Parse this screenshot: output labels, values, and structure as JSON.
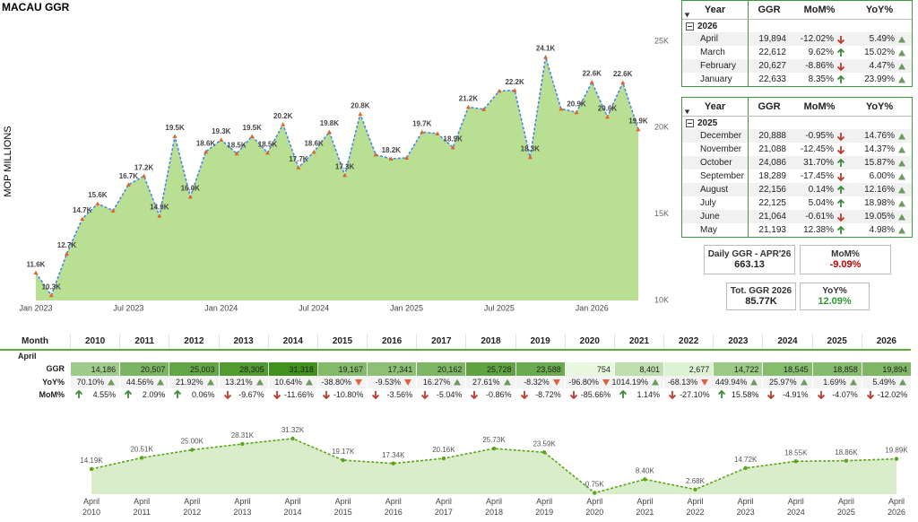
{
  "title": "MACAU GGR",
  "chart_data": [
    {
      "type": "area",
      "y_label": "MOP MILLIONS",
      "categories": [
        "Jan 2023",
        null,
        null,
        null,
        null,
        null,
        "Jul 2023",
        null,
        null,
        null,
        null,
        null,
        "Jan 2024",
        null,
        null,
        null,
        null,
        null,
        "Jul 2024",
        null,
        null,
        null,
        null,
        null,
        "Jan 2025",
        null,
        null,
        null,
        null,
        null,
        "Jul 2025",
        null,
        null,
        null,
        null,
        null,
        "Jan 2026",
        null,
        null,
        null
      ],
      "values": [
        11600,
        10300,
        12700,
        14722,
        15600,
        15200,
        16700,
        17200,
        14900,
        19500,
        16000,
        18600,
        19300,
        18500,
        19500,
        18545,
        20188,
        17694,
        18595,
        19754,
        17254,
        20787,
        18438,
        18202,
        18255,
        19744,
        19660,
        18858,
        21193,
        21064,
        22125,
        22156,
        18289,
        24086,
        21088,
        20888,
        22633,
        20627,
        22612,
        19894
      ],
      "value_labels": [
        "11.6K",
        "10.3K",
        "12.7K",
        "14.7K",
        "15.6K",
        null,
        "16.7K",
        "17.2K",
        "14.9K",
        "19.5K",
        "16.0K",
        "18.6K",
        "19.3K",
        "18.5K",
        "19.5K",
        "18.5K",
        "20.2K",
        "17.7K",
        "18.6K",
        "19.8K",
        "17.3K",
        "20.8K",
        null,
        "18.2K",
        null,
        "19.7K",
        null,
        "18.9K",
        "21.2K",
        null,
        null,
        "22.2K",
        "18.3K",
        "24.1K",
        null,
        "20.9K",
        "22.6K",
        "20.6K",
        "22.6K",
        "19.9K"
      ],
      "ylim": [
        10000,
        25000
      ],
      "yticks": [
        {
          "value": 10000,
          "label": "10K"
        },
        {
          "value": 15000,
          "label": "15K"
        },
        {
          "value": 20000,
          "label": "20K"
        },
        {
          "value": 25000,
          "label": "25K"
        }
      ],
      "line_color": "#4a86e8",
      "fill_color": "#b9df93",
      "marker_color": "#e0632a"
    },
    {
      "type": "area",
      "categories": [
        "April 2010",
        "April 2011",
        "April 2012",
        "April 2013",
        "April 2014",
        "April 2015",
        "April 2016",
        "April 2017",
        "April 2018",
        "April 2019",
        "April 2020",
        "April 2021",
        "April 2022",
        "April 2023",
        "April 2024",
        "April 2025",
        "April 2026"
      ],
      "values": [
        14186,
        20507,
        25003,
        28305,
        31318,
        19167,
        17341,
        20162,
        25728,
        23588,
        754,
        8401,
        2677,
        14722,
        18545,
        18858,
        19894
      ],
      "value_labels": [
        "14.19K",
        "20.51K",
        "25.00K",
        "28.31K",
        "31.32K",
        "19.17K",
        "17.34K",
        "20.16K",
        "25.73K",
        "23.59K",
        "0.75K",
        "8.40K",
        "2.68K",
        "14.72K",
        "18.55K",
        "18.86K",
        "19.89K"
      ],
      "line_color": "#5aa51a",
      "fill_color": "#d9edca"
    }
  ],
  "monthly_tables": [
    {
      "columns": [
        "Year",
        "GGR",
        "MoM%",
        "YoY%"
      ],
      "group": "2026",
      "rows": [
        [
          "April",
          "19,894",
          "-12.02%",
          "5.49%"
        ],
        [
          "March",
          "22,612",
          "9.62%",
          "15.02%"
        ],
        [
          "February",
          "20,627",
          "-8.86%",
          "4.47%"
        ],
        [
          "January",
          "22,633",
          "8.35%",
          "23.99%"
        ]
      ]
    },
    {
      "columns": [
        "Year",
        "GGR",
        "MoM%",
        "YoY%"
      ],
      "group": "2025",
      "rows": [
        [
          "December",
          "20,888",
          "-0.95%",
          "14.76%"
        ],
        [
          "November",
          "21,088",
          "-12.45%",
          "14.37%"
        ],
        [
          "October",
          "24,086",
          "31.70%",
          "15.87%"
        ],
        [
          "September",
          "18,289",
          "-17.45%",
          "6.00%"
        ],
        [
          "August",
          "22,156",
          "0.14%",
          "12.16%"
        ],
        [
          "July",
          "22,125",
          "5.04%",
          "18.98%"
        ],
        [
          "June",
          "21,064",
          "-0.61%",
          "19.05%"
        ],
        [
          "May",
          "21,193",
          "12.38%",
          "4.98%"
        ]
      ]
    }
  ],
  "kpis": [
    {
      "label": "Daily GGR - APR'26",
      "value": "663.13"
    },
    {
      "label": "MoM%",
      "value": "-9.09%"
    },
    {
      "label": "Tot. GGR 2026",
      "value": "85.77K"
    },
    {
      "label": "YoY%",
      "value": "12.09%"
    }
  ],
  "april_table": {
    "corner": "Month",
    "group": "April",
    "columns": [
      "2010",
      "2011",
      "2012",
      "2013",
      "2014",
      "2015",
      "2016",
      "2017",
      "2018",
      "2019",
      "2020",
      "2021",
      "2022",
      "2023",
      "2024",
      "2025",
      "2026"
    ],
    "rows": [
      {
        "label": "GGR",
        "cells": [
          "14,186",
          "20,507",
          "25,003",
          "28,305",
          "31,318",
          "19,167",
          "17,341",
          "20,162",
          "25,728",
          "23,588",
          "754",
          "8,401",
          "2,677",
          "14,722",
          "18,545",
          "18,858",
          "19,894"
        ]
      },
      {
        "label": "YoY%",
        "cells": [
          "70.10%",
          "44.56%",
          "21.92%",
          "13.21%",
          "10.64%",
          "-38.80%",
          "-9.53%",
          "16.27%",
          "27.61%",
          "-8.32%",
          "-96.80%",
          "1014.19%",
          "-68.13%",
          "449.94%",
          "25.97%",
          "1.69%",
          "5.49%"
        ]
      },
      {
        "label": "MoM%",
        "cells": [
          "4.55%",
          "2.09%",
          "0.06%",
          "-9.67%",
          "-11.66%",
          "-10.80%",
          "-3.56%",
          "-5.04%",
          "-0.86%",
          "-8.72%",
          "-85.66%",
          "1.14%",
          "-27.10%",
          "15.58%",
          "-4.91%",
          "-4.07%",
          "-12.02%"
        ]
      }
    ]
  }
}
